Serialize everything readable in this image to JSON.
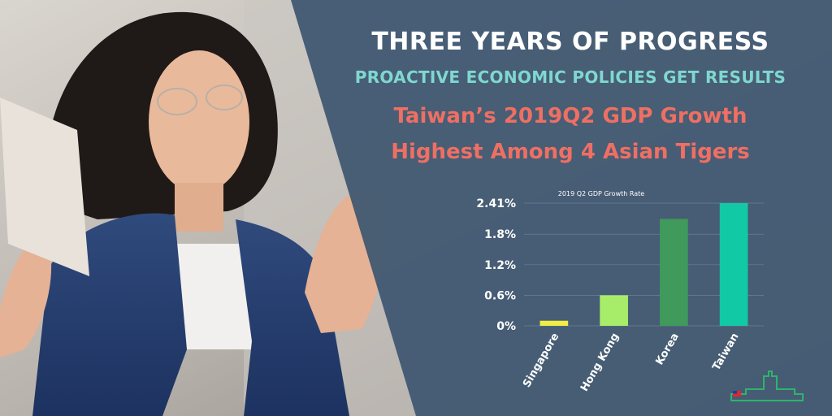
{
  "headline": "THREE YEARS OF PROGRESS",
  "subheadline": "PROACTIVE ECONOMIC POLICIES GET RESULTS",
  "claim": {
    "line1": "Taiwan’s 2019Q2 GDP Growth",
    "line2": "Highest Among 4 Asian Tigers"
  },
  "chart_data": {
    "type": "bar",
    "title": "2019 Q2 GDP Growth Rate",
    "xlabel": "",
    "ylabel": "",
    "categories": [
      "Singapore",
      "Hong Kong",
      "Korea",
      "Taiwan"
    ],
    "values": [
      0.1,
      0.6,
      2.1,
      2.41
    ],
    "bar_colors": [
      "#f2ec46",
      "#a8ed6a",
      "#3f9a5c",
      "#12c9a5"
    ],
    "yticks": [
      {
        "value": 0,
        "label": "0%"
      },
      {
        "value": 0.6,
        "label": "0.6%"
      },
      {
        "value": 1.2,
        "label": "1.2%"
      },
      {
        "value": 1.8,
        "label": "1.8%"
      },
      {
        "value": 2.41,
        "label": "2.41%"
      }
    ],
    "ylim": [
      0,
      2.41
    ],
    "grid": true,
    "legend": "none"
  },
  "colors": {
    "headline": "#ffffff",
    "subheadline": "#7fd8cf",
    "claim": "#ef6f63",
    "panel": "#3d5670"
  }
}
